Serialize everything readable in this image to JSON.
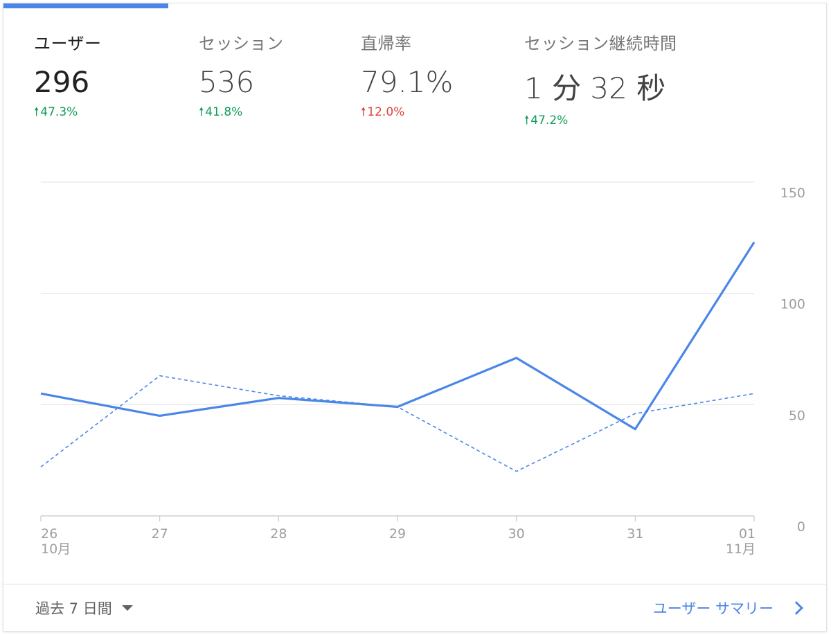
{
  "metrics": [
    {
      "label": "ユーザー",
      "value": "296",
      "change": "47.3%",
      "direction": "up",
      "active": true
    },
    {
      "label": "セッション",
      "value": "536",
      "change": "41.8%",
      "direction": "up",
      "active": false
    },
    {
      "label": "直帰率",
      "value": "79.1%",
      "change": "12.0%",
      "direction": "up-bad",
      "active": false
    },
    {
      "label": "セッション継続時間",
      "value": "1 分 32 秒",
      "change": "47.2%",
      "direction": "up",
      "active": false
    }
  ],
  "chart_data": {
    "type": "line",
    "categories": [
      "26",
      "27",
      "28",
      "29",
      "30",
      "31",
      "01"
    ],
    "month_labels": {
      "first": "10月",
      "last": "11月"
    },
    "series": [
      {
        "style": "solid",
        "color": "#4a86e8",
        "values": [
          55,
          45,
          53,
          49,
          71,
          39,
          123
        ]
      },
      {
        "style": "dashed",
        "color": "#4a86e8",
        "values": [
          22,
          63,
          54,
          49,
          20,
          46,
          55
        ]
      }
    ],
    "y_ticks": [
      "150",
      "100",
      "50",
      "0"
    ],
    "ylim": [
      0,
      150
    ],
    "grid": true,
    "y_axis_side": "right"
  },
  "footer": {
    "date_range": "過去 7 日間",
    "summary_link": "ユーザー サマリー"
  },
  "colors": {
    "accent": "#4a86e8",
    "positive": "#0f9d58",
    "negative": "#db4437"
  }
}
